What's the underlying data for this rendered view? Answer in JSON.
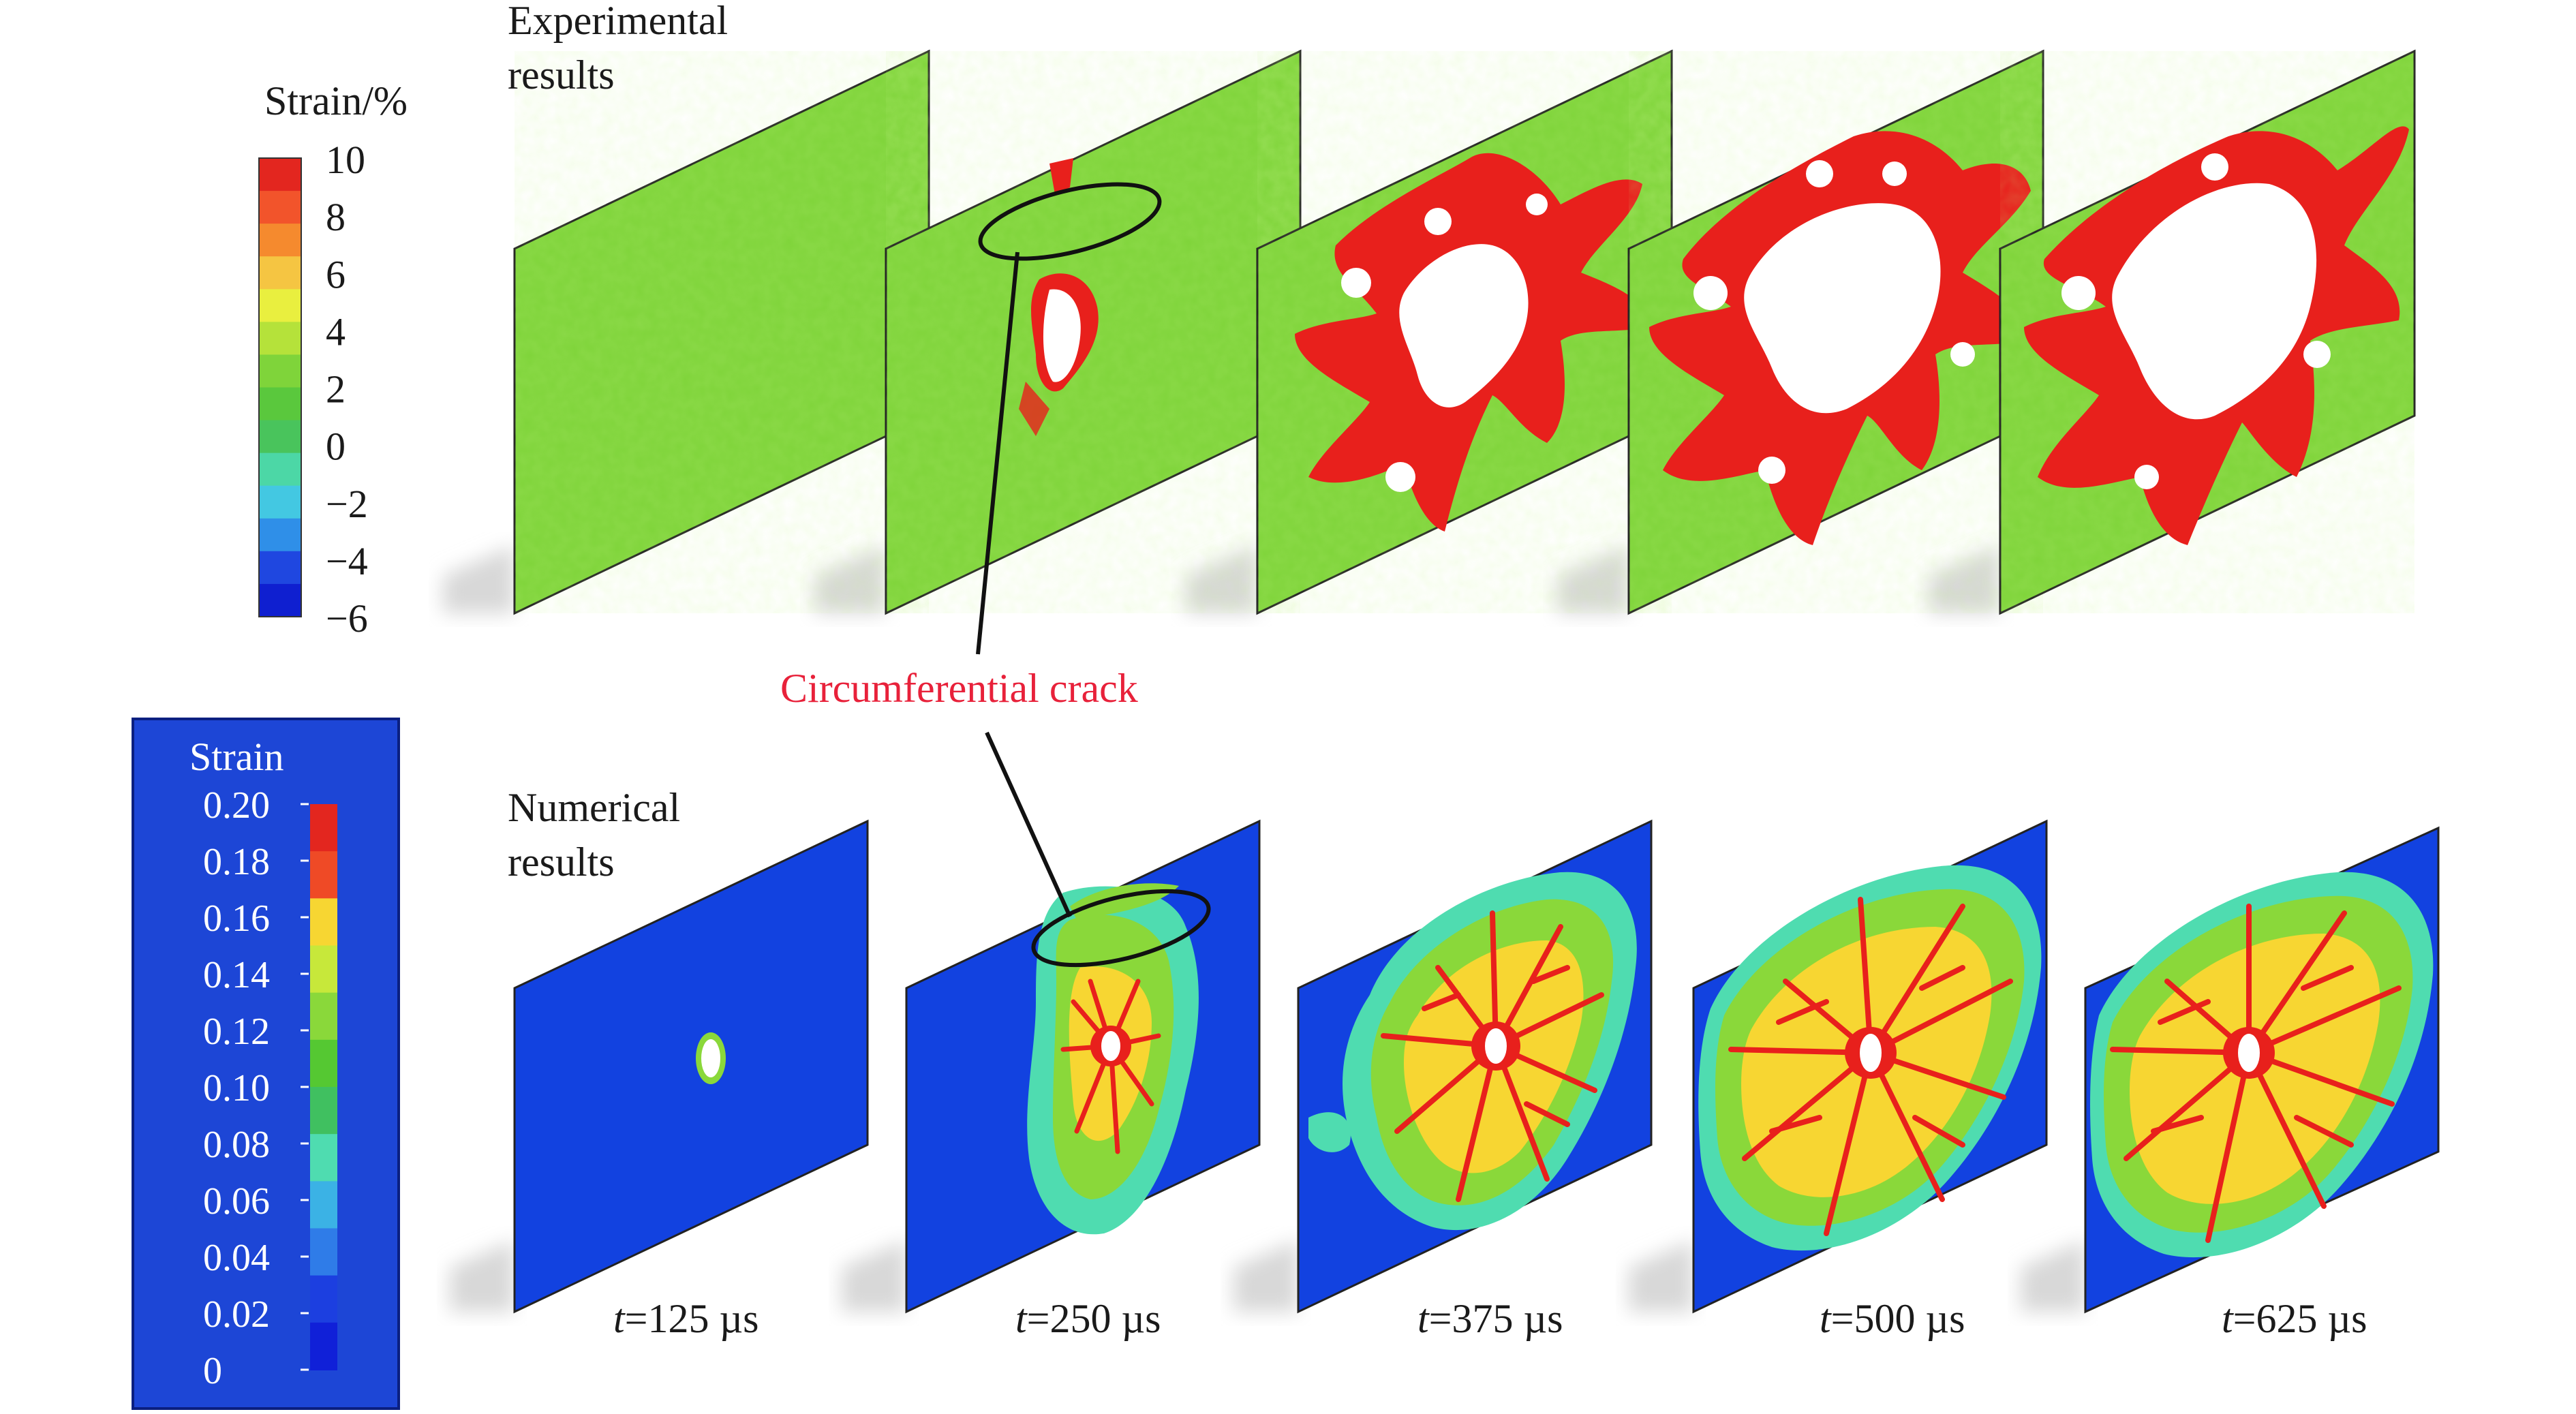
{
  "experimental": {
    "label_line1": "Experimental",
    "label_line2": "results",
    "legend_title": "Strain/%",
    "legend_ticks": [
      "10",
      "8",
      "6",
      "4",
      "2",
      "0",
      "−2",
      "−4",
      "−6"
    ],
    "colors": [
      "#e3261f",
      "#f2542b",
      "#f58a2e",
      "#f5c542",
      "#e9ef3f",
      "#b5e23a",
      "#7fd43a",
      "#5ac83d",
      "#49c45c",
      "#4cd7a6",
      "#43c8e2",
      "#2f8fe8",
      "#1f47e0",
      "#0f1fd0"
    ]
  },
  "numerical": {
    "label_line1": "Numerical",
    "label_line2": "results",
    "legend_title": "Strain",
    "legend_ticks": [
      "0.20",
      "0.18",
      "0.16",
      "0.14",
      "0.12",
      "0.10",
      "0.08",
      "0.06",
      "0.04",
      "0.02",
      "0"
    ],
    "colors": [
      "#e3261f",
      "#ef4a26",
      "#f7d632",
      "#c7e83a",
      "#8ad83a",
      "#55c832",
      "#40c060",
      "#4fdcb0",
      "#3bb2e5",
      "#2f7ce8",
      "#1c3fe0",
      "#1020d8"
    ],
    "legend_bg": "#1d46d6"
  },
  "annotation": {
    "text": "Circumferential crack"
  },
  "times": [
    {
      "var": "t",
      "rest": "=125 µs"
    },
    {
      "var": "t",
      "rest": "=250 µs"
    },
    {
      "var": "t",
      "rest": "=375 µs"
    },
    {
      "var": "t",
      "rest": "=500 µs"
    },
    {
      "var": "t",
      "rest": "=625 µs"
    }
  ],
  "panel_colors": {
    "exp_bg": "#7fd43a",
    "num_bg": "#1242e0",
    "hot": "#e8201c",
    "void": "#ffffff",
    "shadow": "#d4d4d4"
  }
}
